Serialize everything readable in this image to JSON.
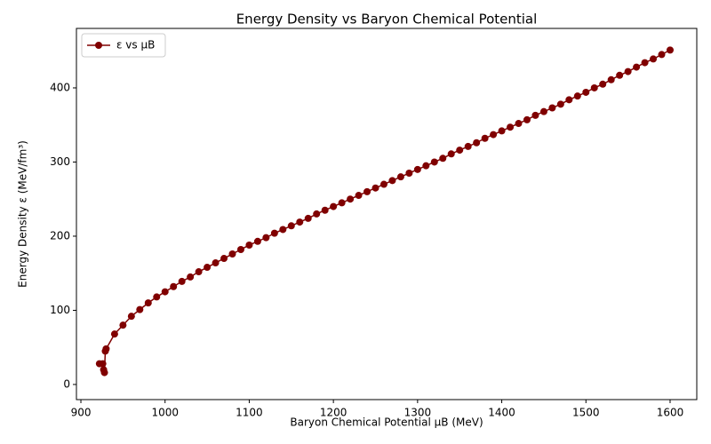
{
  "chart_data": {
    "type": "line",
    "title": "Energy Density vs Baryon Chemical Potential",
    "x_label": "Baryon Chemical Potential μB (MeV)",
    "y_label": "Energy Density ε (MeV/fm³)",
    "xlim": [
      894.7,
      1631.7
    ],
    "ylim": [
      -20.4,
      480.2
    ],
    "xticks": [
      900,
      1000,
      1100,
      1200,
      1300,
      1400,
      1500,
      1600
    ],
    "yticks": [
      0,
      100,
      200,
      300,
      400
    ],
    "legend": "upper left",
    "x": [
      922,
      926,
      927,
      928,
      929,
      930,
      940,
      950,
      960,
      970,
      980,
      990,
      1000,
      1010,
      1020,
      1030,
      1040,
      1050,
      1060,
      1070,
      1080,
      1090,
      1100,
      1110,
      1120,
      1130,
      1140,
      1150,
      1160,
      1170,
      1180,
      1190,
      1200,
      1210,
      1220,
      1230,
      1240,
      1250,
      1260,
      1270,
      1280,
      1290,
      1300,
      1310,
      1320,
      1330,
      1340,
      1350,
      1360,
      1370,
      1380,
      1390,
      1400,
      1410,
      1420,
      1430,
      1440,
      1450,
      1460,
      1470,
      1480,
      1490,
      1500,
      1510,
      1520,
      1530,
      1540,
      1550,
      1560,
      1570,
      1580,
      1590,
      1600
    ],
    "series": [
      {
        "name": "ε vs μB",
        "color": "#800000",
        "values": [
          28,
          28,
          20,
          16,
          45,
          48,
          68,
          80,
          92,
          101,
          110,
          118,
          125,
          132,
          139,
          145,
          152,
          158,
          164,
          170,
          176,
          182,
          188,
          193,
          198,
          204,
          209,
          214,
          219,
          224,
          230,
          235,
          240,
          245,
          250,
          255,
          260,
          265,
          270,
          275,
          280,
          285,
          290,
          295,
          300,
          305,
          311,
          316,
          321,
          326,
          332,
          337,
          342,
          347,
          352,
          357,
          363,
          368,
          373,
          378,
          384,
          389,
          394,
          400,
          405,
          411,
          417,
          422,
          428,
          434,
          439,
          445,
          451
        ]
      }
    ]
  }
}
